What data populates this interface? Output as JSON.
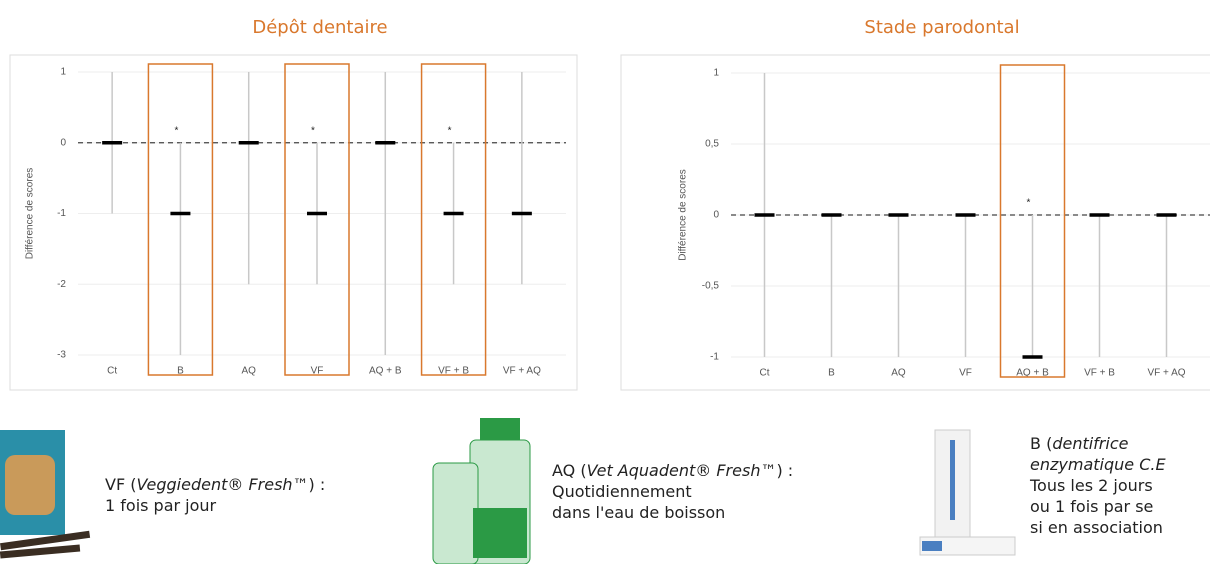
{
  "chart_data": [
    {
      "type": "range",
      "title": "Dépôt dentaire",
      "y_label": "Différence de scores",
      "categories": [
        "Ct",
        "B",
        "AQ",
        "VF",
        "AQ + B",
        "VF + B",
        "VF + AQ"
      ],
      "min": [
        -1,
        -3,
        -2,
        -2,
        -3,
        -2,
        -2
      ],
      "median": [
        0,
        -1,
        0,
        -1,
        0,
        -1,
        -1
      ],
      "max": [
        1,
        0,
        1,
        0,
        1,
        0,
        1
      ],
      "significance": [
        null,
        "*",
        null,
        "*",
        null,
        "*",
        null
      ],
      "highlighted": [
        1,
        3,
        5
      ],
      "reference_line": 0,
      "ylim": [
        -3,
        1
      ],
      "yticks": [
        -3,
        -2,
        -1,
        0,
        1
      ],
      "color": "#000000",
      "whisker_color": "#c8c8c8",
      "highlight_color": "#d9782d"
    },
    {
      "type": "range",
      "title": "Stade parodontal",
      "y_label": "Différence de scores",
      "categories": [
        "Ct",
        "B",
        "AQ",
        "VF",
        "AQ + B",
        "VF + B",
        "VF + AQ"
      ],
      "min": [
        -1,
        -1,
        -1,
        -1,
        -1,
        -1,
        -1
      ],
      "median": [
        0,
        0,
        0,
        0,
        -1,
        0,
        0
      ],
      "max": [
        1,
        0,
        0,
        0,
        0,
        0,
        0
      ],
      "significance": [
        null,
        null,
        null,
        null,
        "*",
        null,
        null
      ],
      "highlighted": [
        4
      ],
      "reference_line": 0,
      "ylim": [
        -1,
        1
      ],
      "yticks": [
        -1,
        {
          "value": -0.5,
          "label": "-0,5"
        },
        0,
        {
          "value": 0.5,
          "label": "0,5"
        },
        1
      ],
      "color": "#000000",
      "whisker_color": "#c8c8c8",
      "highlight_color": "#d9782d"
    }
  ],
  "products": [
    {
      "prefix": "VF (",
      "name": "Veggiedent® Fresh™",
      "suffix": ") :",
      "lines": [
        "1 fois par jour"
      ]
    },
    {
      "prefix": "AQ (",
      "name": "Vet Aquadent® Fresh™",
      "suffix": ") :",
      "lines": [
        "Quotidiennement",
        "dans l'eau de boisson"
      ]
    },
    {
      "prefix": "B (",
      "name": "dentifrice",
      "suffix": "",
      "lines": [
        "enzymatique C.E",
        "Tous les 2 jours",
        "ou 1 fois par se",
        "si en association"
      ]
    }
  ]
}
